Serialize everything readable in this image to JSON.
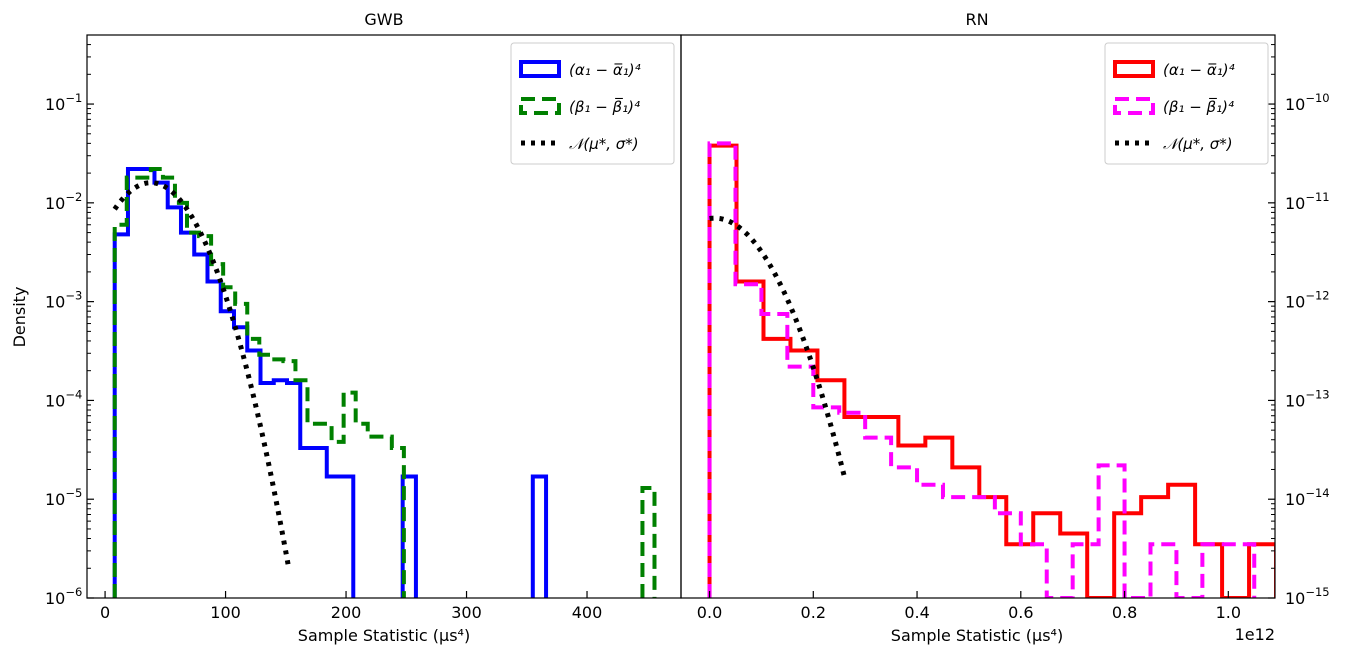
{
  "chart_data": [
    {
      "type": "histogram",
      "title": "GWB",
      "xlabel": "Sample Statistic (μs⁴)",
      "ylabel": "Density",
      "xlim": [
        -15,
        478
      ],
      "ylim": [
        1e-06,
        0.5
      ],
      "yscale": "log",
      "xticks": [
        {
          "v": 0,
          "t": "0"
        },
        {
          "v": 100,
          "t": "100"
        },
        {
          "v": 200,
          "t": "200"
        },
        {
          "v": 300,
          "t": "300"
        },
        {
          "v": 400,
          "t": "400"
        }
      ],
      "yticks": [
        {
          "e": -6,
          "t": "10",
          "s": "−6"
        },
        {
          "e": -5,
          "t": "10",
          "s": "−5"
        },
        {
          "e": -4,
          "t": "10",
          "s": "−4"
        },
        {
          "e": -3,
          "t": "10",
          "s": "−3"
        },
        {
          "e": -2,
          "t": "10",
          "s": "−2"
        },
        {
          "e": -1,
          "t": "10",
          "s": "−1"
        }
      ],
      "legend_position": "top-right",
      "series": [
        {
          "name": "alpha",
          "legend_math": "(α₁ − α̅₁)⁴",
          "color": "#0000ff",
          "dash": "solid",
          "bin_edges": [
            8,
            19,
            30,
            41,
            52,
            63,
            74,
            85,
            96,
            107,
            118,
            129,
            140,
            151,
            162,
            173,
            184,
            195,
            206
          ],
          "values": [
            0.0048,
            0.022,
            0.022,
            0.016,
            0.009,
            0.005,
            0.003,
            0.0016,
            0.0008,
            0.00055,
            0.00032,
            0.00015,
            0.00016,
            0.00015,
            3.3e-05,
            3.3e-05,
            1.7e-05,
            1.7e-05,
            0
          ],
          "extra_bins": [
            {
              "x0": 247,
              "x1": 258,
              "v": 1.7e-05
            },
            {
              "x0": 355,
              "x1": 366,
              "v": 1.7e-05
            }
          ]
        },
        {
          "name": "beta",
          "legend_math": "(β₁ − β̅₁)⁴",
          "color": "#008000",
          "dash": "dashed",
          "bin_edges": [
            8,
            18,
            28,
            38,
            48,
            58,
            68,
            78,
            88,
            98,
            108,
            118,
            128,
            138,
            148,
            158,
            168,
            178,
            188,
            198,
            208,
            218,
            228,
            238,
            248
          ],
          "values": [
            0.006,
            0.018,
            0.018,
            0.022,
            0.018,
            0.01,
            0.005,
            0.0046,
            0.0024,
            0.0014,
            0.00095,
            0.00042,
            0.00029,
            0.00026,
            0.00025,
            0.00016,
            5.8e-05,
            5.8e-05,
            3.8e-05,
            0.00012,
            5.8e-05,
            4.3e-05,
            4.3e-05,
            3.3e-05,
            0
          ],
          "extra_bins": [
            {
              "x0": 446,
              "x1": 456,
              "v": 1.3e-05
            }
          ]
        },
        {
          "name": "normal",
          "legend_math": "𝒩(μ*, σ*)",
          "color": "#000000",
          "dash": "dotted",
          "mu": 38,
          "sigma": 27,
          "peak": 0.016,
          "x_start": 8,
          "x_end": 152
        }
      ]
    },
    {
      "type": "histogram",
      "title": "RN",
      "xlabel": "Sample Statistic (μs⁴)",
      "offset_text": "1e12",
      "xlim": [
        -0.055,
        1.09
      ],
      "ylim": [
        1e-15,
        5e-10
      ],
      "yscale": "log",
      "y_axis_side": "right",
      "xticks": [
        {
          "v": 0,
          "t": "0.0"
        },
        {
          "v": 0.2,
          "t": "0.2"
        },
        {
          "v": 0.4,
          "t": "0.4"
        },
        {
          "v": 0.6,
          "t": "0.6"
        },
        {
          "v": 0.8,
          "t": "0.8"
        },
        {
          "v": 1.0,
          "t": "1.0"
        }
      ],
      "yticks": [
        {
          "e": -15,
          "t": "10",
          "s": "−15"
        },
        {
          "e": -14,
          "t": "10",
          "s": "−14"
        },
        {
          "e": -13,
          "t": "10",
          "s": "−13"
        },
        {
          "e": -12,
          "t": "10",
          "s": "−12"
        },
        {
          "e": -11,
          "t": "10",
          "s": "−11"
        },
        {
          "e": -10,
          "t": "10",
          "s": "−10"
        }
      ],
      "legend_position": "top-right",
      "series": [
        {
          "name": "alpha",
          "legend_math": "(α₁ − α̅₁)⁴",
          "color": "#ff0000",
          "dash": "solid",
          "bin_edges": [
            0,
            0.052,
            0.104,
            0.156,
            0.208,
            0.26,
            0.312,
            0.364,
            0.416,
            0.468,
            0.52,
            0.572,
            0.624,
            0.676,
            0.728,
            0.78,
            0.832,
            0.884,
            0.936,
            0.988,
            1.04,
            1.092
          ],
          "values": [
            3.8e-11,
            1.6e-12,
            4.2e-13,
            3.2e-13,
            1.6e-13,
            6.8e-14,
            6.8e-14,
            3.5e-14,
            4.2e-14,
            2.1e-14,
            1.05e-14,
            3.5e-15,
            7.2e-15,
            4.5e-15,
            0,
            7.2e-15,
            1.05e-14,
            1.4e-14,
            3.5e-15,
            0,
            3.5e-15
          ],
          "hidden_zero_bins": [
            14,
            19
          ]
        },
        {
          "name": "beta",
          "legend_math": "(β₁ − β̅₁)⁴",
          "color": "#ff00ff",
          "dash": "dashed",
          "bin_edges": [
            0,
            0.05,
            0.1,
            0.15,
            0.2,
            0.25,
            0.3,
            0.35,
            0.4,
            0.45,
            0.5,
            0.55,
            0.6,
            0.65,
            0.7,
            0.75,
            0.8,
            0.85,
            0.9,
            0.95,
            1.0,
            1.05
          ],
          "values": [
            4e-11,
            1.5e-12,
            7.5e-13,
            2.2e-13,
            8.5e-14,
            7.5e-14,
            4.2e-14,
            2.1e-14,
            1.4e-14,
            1.05e-14,
            1.05e-14,
            7.2e-15,
            3.5e-15,
            0,
            3.5e-15,
            2.2e-14,
            0,
            3.5e-15,
            0,
            3.5e-15,
            3.5e-15
          ],
          "hidden_zero_bins": [
            13,
            16,
            18
          ]
        },
        {
          "name": "normal",
          "legend_math": "𝒩(μ*, σ*)",
          "color": "#000000",
          "dash": "dotted",
          "mu": 0.01,
          "sigma": 0.072,
          "peak": 7e-12,
          "x_start": 0.0,
          "x_end": 0.26
        }
      ]
    }
  ]
}
